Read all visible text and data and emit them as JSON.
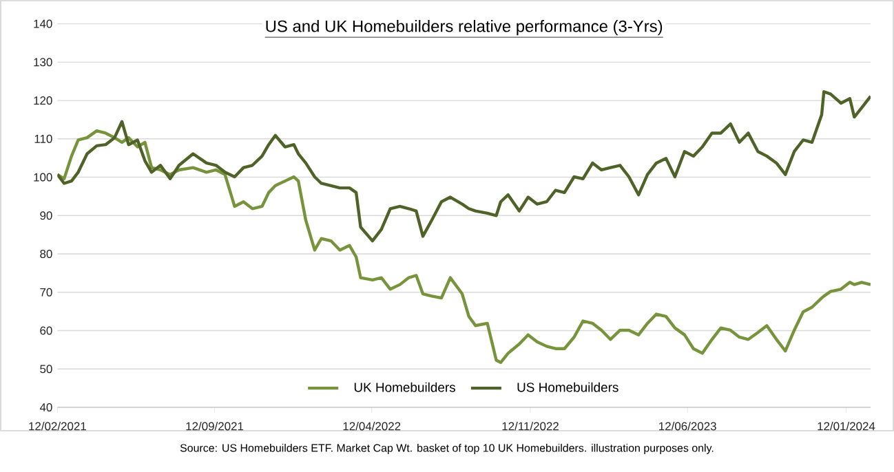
{
  "chart_data": {
    "type": "line",
    "title": "US and UK Homebuilders relative performance (3-Yrs)",
    "annotations": [
      "Source: US Homebuilders ETF. Market Cap Wt. basket of top 10 UK Homebuilders. illustration purposes only."
    ],
    "x": [
      "2021-02-12",
      "2021-02-21",
      "2021-03-03",
      "2021-03-12",
      "2021-03-24",
      "2021-04-06",
      "2021-04-18",
      "2021-04-30",
      "2021-05-10",
      "2021-05-19",
      "2021-05-31",
      "2021-06-10",
      "2021-06-19",
      "2021-07-01",
      "2021-07-14",
      "2021-07-26",
      "2021-08-14",
      "2021-09-01",
      "2021-09-14",
      "2021-09-26",
      "2021-10-09",
      "2021-10-21",
      "2021-11-02",
      "2021-11-15",
      "2021-11-24",
      "2021-12-03",
      "2021-12-16",
      "2021-12-28",
      "2022-01-03",
      "2022-01-13",
      "2022-01-25",
      "2022-02-03",
      "2022-02-16",
      "2022-02-28",
      "2022-03-13",
      "2022-03-22",
      "2022-03-28",
      "2022-04-13",
      "2022-04-25",
      "2022-05-07",
      "2022-05-20",
      "2022-06-01",
      "2022-06-11",
      "2022-06-20",
      "2022-07-02",
      "2022-07-15",
      "2022-07-27",
      "2022-08-12",
      "2022-08-21",
      "2022-08-30",
      "2022-09-15",
      "2022-09-27",
      "2022-10-03",
      "2022-10-13",
      "2022-10-28",
      "2022-11-09",
      "2022-11-21",
      "2022-12-04",
      "2022-12-16",
      "2022-12-28",
      "2023-01-10",
      "2023-01-22",
      "2023-02-04",
      "2023-02-16",
      "2023-02-28",
      "2023-03-13",
      "2023-03-25",
      "2023-04-07",
      "2023-04-19",
      "2023-05-01",
      "2023-05-14",
      "2023-05-26",
      "2023-06-08",
      "2023-06-20",
      "2023-07-02",
      "2023-07-15",
      "2023-07-27",
      "2023-08-09",
      "2023-08-21",
      "2023-09-02",
      "2023-09-15",
      "2023-09-27",
      "2023-10-10",
      "2023-10-22",
      "2023-11-03",
      "2023-11-15",
      "2023-11-27",
      "2023-12-10",
      "2023-12-13",
      "2023-12-22",
      "2024-01-05",
      "2024-01-17",
      "2024-01-23",
      "2024-02-02",
      "2024-02-14"
    ],
    "series": [
      {
        "name": "UK Homebuilders",
        "color": "#77933c",
        "values": [
          100.7,
          99.6,
          105.5,
          109.7,
          110.3,
          112.1,
          111.5,
          110.3,
          109.1,
          110.3,
          107.9,
          109.1,
          102.5,
          101.9,
          100.7,
          101.9,
          102.5,
          101.3,
          101.9,
          100.7,
          92.4,
          93.6,
          91.8,
          92.4,
          96.0,
          97.8,
          99.0,
          100.1,
          99.0,
          88.8,
          81.0,
          84.0,
          83.4,
          81.0,
          82.2,
          79.2,
          73.8,
          73.2,
          73.8,
          70.8,
          72.0,
          73.8,
          74.4,
          69.6,
          69.0,
          68.5,
          73.8,
          69.6,
          63.7,
          61.3,
          61.9,
          52.3,
          51.7,
          54.1,
          56.5,
          58.9,
          57.1,
          55.9,
          55.3,
          55.3,
          58.3,
          62.5,
          61.9,
          60.1,
          57.7,
          60.1,
          60.1,
          58.9,
          61.9,
          64.3,
          63.7,
          60.7,
          58.9,
          55.3,
          54.1,
          57.7,
          60.7,
          60.1,
          58.3,
          57.7,
          59.5,
          61.3,
          57.7,
          54.7,
          60.1,
          64.9,
          66.1,
          68.5,
          69.0,
          70.2,
          70.8,
          72.6,
          72.0,
          72.6,
          72.0
        ]
      },
      {
        "name": "US Homebuilders",
        "color": "#4f6228",
        "values": [
          100.7,
          98.4,
          99.0,
          101.3,
          106.1,
          108.2,
          108.5,
          110.3,
          114.5,
          108.5,
          109.7,
          104.3,
          101.3,
          103.1,
          99.6,
          103.1,
          106.1,
          103.7,
          103.1,
          101.3,
          100.1,
          102.5,
          103.1,
          105.5,
          108.5,
          110.9,
          107.9,
          108.5,
          106.1,
          103.7,
          100.1,
          98.4,
          97.8,
          97.2,
          97.2,
          96.0,
          87.0,
          83.4,
          86.4,
          91.8,
          92.4,
          91.8,
          91.2,
          84.6,
          88.8,
          93.6,
          94.8,
          93.0,
          91.8,
          91.2,
          90.6,
          90.0,
          93.6,
          95.4,
          91.2,
          94.8,
          93.0,
          93.6,
          96.6,
          96.0,
          100.1,
          99.6,
          103.7,
          101.9,
          102.5,
          103.1,
          100.1,
          95.4,
          100.7,
          103.7,
          104.9,
          100.1,
          106.7,
          105.5,
          107.9,
          111.5,
          111.5,
          113.9,
          109.1,
          111.5,
          106.7,
          105.5,
          103.7,
          100.7,
          106.7,
          109.7,
          109.1,
          116.3,
          122.3,
          121.7,
          119.3,
          120.5,
          115.7,
          118.1,
          121.1
        ]
      }
    ],
    "xlim": [
      "2021-02-12",
      "2024-02-14"
    ],
    "xticks": [
      {
        "value": "2021-02-12",
        "label": "12/02/2021"
      },
      {
        "value": "2021-09-12",
        "label": "12/09/2021"
      },
      {
        "value": "2022-04-12",
        "label": "12/04/2022"
      },
      {
        "value": "2022-11-12",
        "label": "12/11/2022"
      },
      {
        "value": "2023-06-12",
        "label": "12/06/2023"
      },
      {
        "value": "2024-01-12",
        "label": "12/01/2024"
      }
    ],
    "ylim": [
      40,
      140
    ],
    "yticks": [
      40,
      50,
      60,
      70,
      80,
      90,
      100,
      110,
      120,
      130,
      140
    ],
    "grid": "y",
    "legend": "bottom",
    "marker": "none",
    "line_style": "solid"
  }
}
